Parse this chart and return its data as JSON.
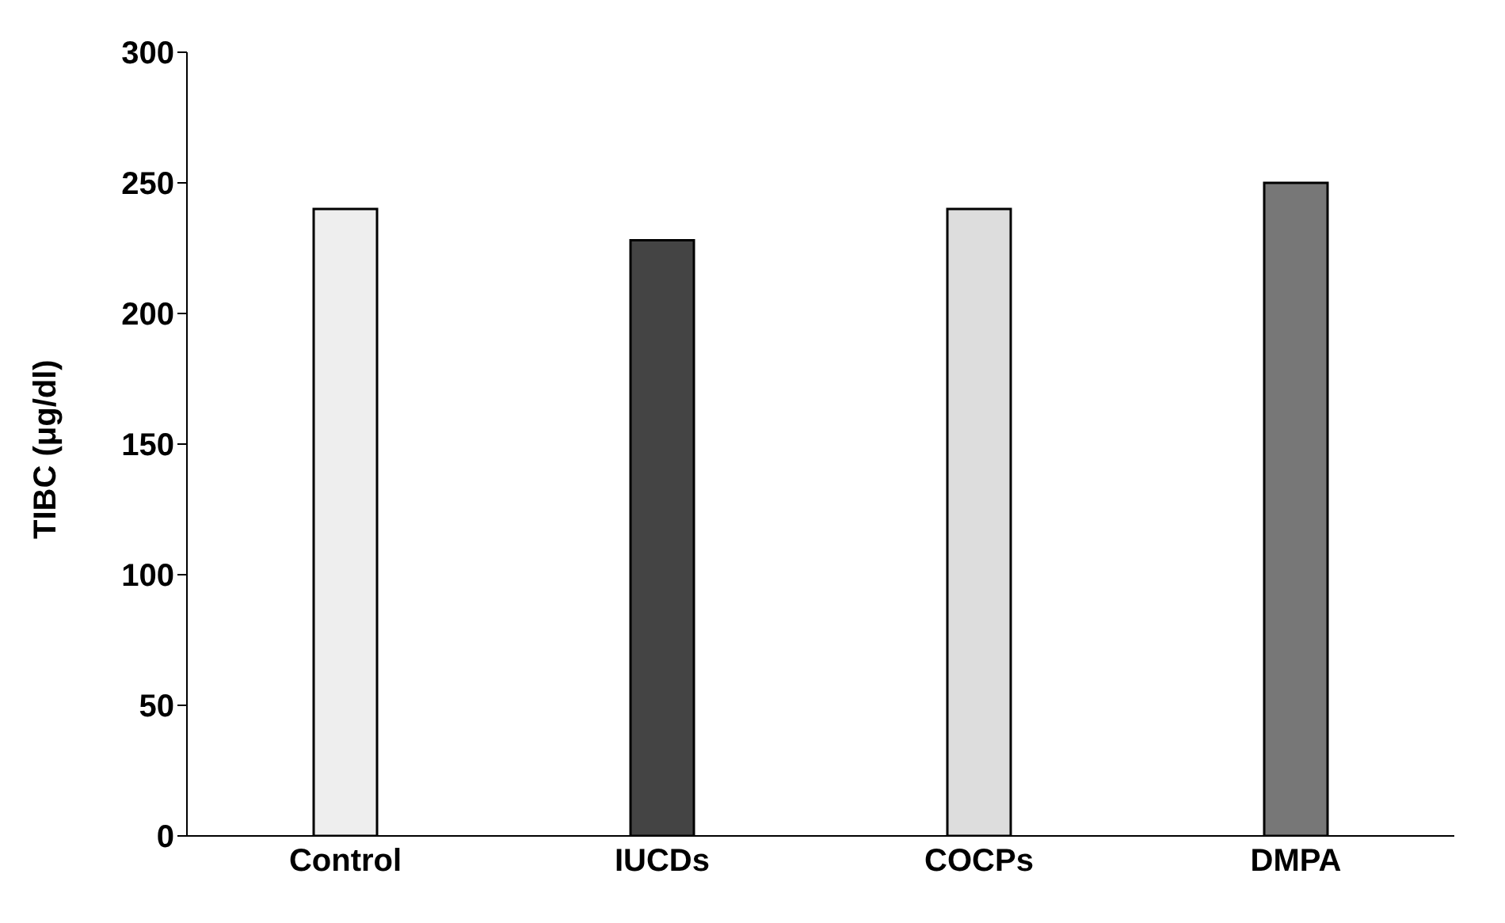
{
  "chart_data": {
    "type": "bar",
    "ylabel": "TIBC  (μg/dl)",
    "categories": [
      "Control",
      "IUCDs",
      "COCPs",
      "DMPA"
    ],
    "values": [
      240,
      228,
      240,
      250
    ],
    "colors": [
      "#eeeeee",
      "#444444",
      "#dddddd",
      "#777777"
    ],
    "ylim": [
      0,
      300
    ],
    "yticks": [
      0,
      50,
      100,
      150,
      200,
      250,
      300
    ],
    "grid": false
  }
}
